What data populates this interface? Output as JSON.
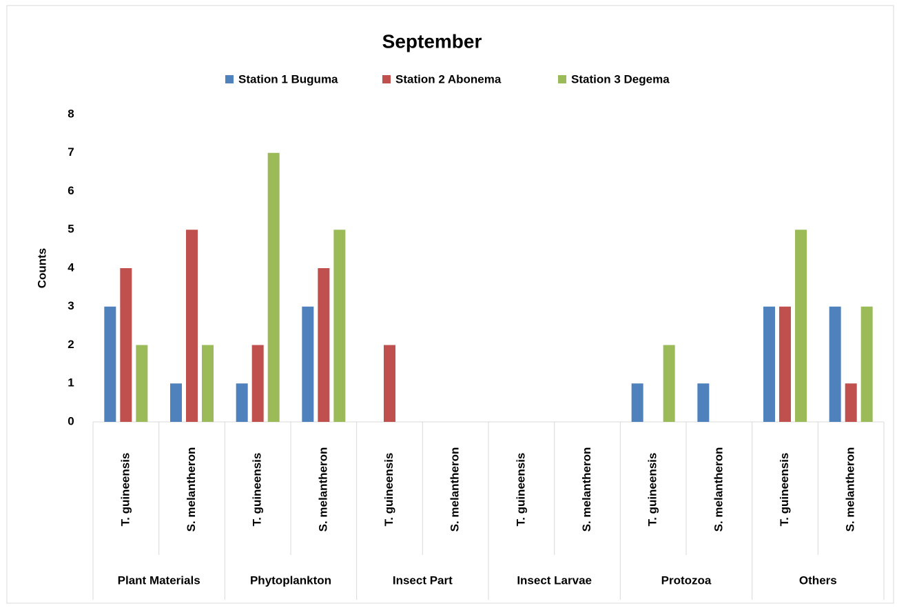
{
  "chart_data": {
    "type": "bar",
    "title": "September",
    "y_label": "Counts",
    "categories": [
      "T. guineensis",
      "S. melantheron",
      "T. guineensis",
      "S. melantheron",
      "T. guineensis",
      "S. melantheron",
      "T. guineensis",
      "S. melantheron",
      "T. guineensis",
      "S. melantheron",
      "T. guineensis",
      "S. melantheron"
    ],
    "category_groups": [
      "Plant Materials",
      "Phytoplankton",
      "Insect Part",
      "Insect Larvae",
      "Protozoa",
      "Others"
    ],
    "series": [
      {
        "name": "Station 1 Buguma",
        "color": "#4f81bd",
        "values": [
          3,
          1,
          1,
          3,
          0,
          0,
          0,
          0,
          1,
          1,
          3,
          3
        ]
      },
      {
        "name": "Station 2 Abonema",
        "color": "#c0504d",
        "values": [
          4,
          5,
          2,
          4,
          2,
          0,
          0,
          0,
          0,
          0,
          3,
          1
        ]
      },
      {
        "name": "Station 3 Degema",
        "color": "#9bbb59",
        "values": [
          2,
          2,
          7,
          5,
          0,
          0,
          0,
          0,
          2,
          0,
          5,
          3
        ]
      }
    ],
    "ylim": [
      0,
      8
    ],
    "yticks": [
      0,
      1,
      2,
      3,
      4,
      5,
      6,
      7,
      8
    ],
    "grid": false,
    "legend": "top"
  }
}
